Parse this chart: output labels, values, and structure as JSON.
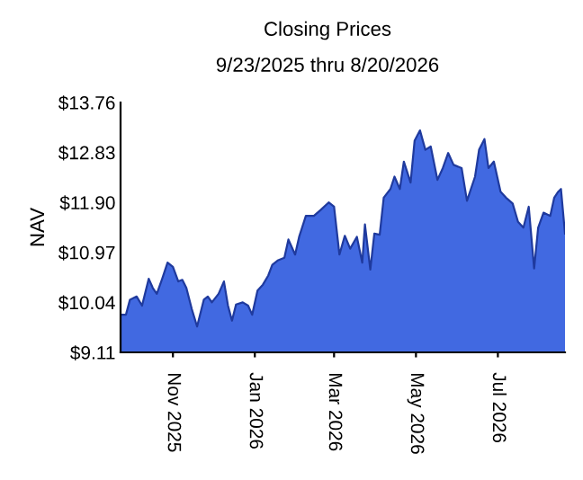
{
  "chart_data": {
    "type": "area",
    "title": "Closing Prices",
    "subtitle": "9/23/2025 thru 8/20/2026",
    "ylabel": "NAV",
    "x": [
      "2025-09-23",
      "2025-09-27",
      "2025-09-30",
      "2025-10-05",
      "2025-10-09",
      "2025-10-14",
      "2025-10-17",
      "2025-10-20",
      "2025-10-24",
      "2025-10-28",
      "2025-11-01",
      "2025-11-05",
      "2025-11-08",
      "2025-11-11",
      "2025-11-15",
      "2025-11-19",
      "2025-11-24",
      "2025-11-27",
      "2025-11-30",
      "2025-12-05",
      "2025-12-09",
      "2025-12-12",
      "2025-12-15",
      "2025-12-18",
      "2025-12-23",
      "2025-12-27",
      "2025-12-30",
      "2026-01-03",
      "2026-01-07",
      "2026-01-11",
      "2026-01-14",
      "2026-01-18",
      "2026-01-23",
      "2026-01-26",
      "2026-01-31",
      "2026-02-03",
      "2026-02-08",
      "2026-02-14",
      "2026-02-19",
      "2026-02-25",
      "2026-03-01",
      "2026-03-05",
      "2026-03-09",
      "2026-03-13",
      "2026-03-18",
      "2026-03-22",
      "2026-03-24",
      "2026-03-28",
      "2026-03-31",
      "2026-04-04",
      "2026-04-07",
      "2026-04-12",
      "2026-04-15",
      "2026-04-19",
      "2026-04-22",
      "2026-04-27",
      "2026-04-30",
      "2026-05-04",
      "2026-05-08",
      "2026-05-12",
      "2026-05-17",
      "2026-05-21",
      "2026-05-25",
      "2026-05-29",
      "2026-06-04",
      "2026-06-08",
      "2026-06-14",
      "2026-06-17",
      "2026-06-21",
      "2026-06-24",
      "2026-06-28",
      "2026-07-03",
      "2026-07-07",
      "2026-07-12",
      "2026-07-16",
      "2026-07-20",
      "2026-07-24",
      "2026-07-28",
      "2026-07-31",
      "2026-08-04",
      "2026-08-09",
      "2026-08-12",
      "2026-08-15",
      "2026-08-17",
      "2026-08-20"
    ],
    "series": [
      {
        "color": "#4169e1",
        "values": [
          9.81,
          9.81,
          10.09,
          10.15,
          9.98,
          10.48,
          10.31,
          10.2,
          10.48,
          10.78,
          10.7,
          10.43,
          10.46,
          10.31,
          9.92,
          9.59,
          10.09,
          10.15,
          10.04,
          10.2,
          10.43,
          9.98,
          9.7,
          10.0,
          10.04,
          9.98,
          9.81,
          10.26,
          10.37,
          10.54,
          10.74,
          10.82,
          10.87,
          11.21,
          10.93,
          11.26,
          11.65,
          11.65,
          11.76,
          11.9,
          11.82,
          10.93,
          11.28,
          11.04,
          11.26,
          10.78,
          11.49,
          10.65,
          11.32,
          11.3,
          11.99,
          12.15,
          12.38,
          12.15,
          12.66,
          12.27,
          13.05,
          13.24,
          12.88,
          12.94,
          12.32,
          12.54,
          12.82,
          12.6,
          12.54,
          11.93,
          12.38,
          12.88,
          13.08,
          12.54,
          12.66,
          12.1,
          11.99,
          11.88,
          11.54,
          11.43,
          11.82,
          10.67,
          11.43,
          11.71,
          11.65,
          11.99,
          12.1,
          12.15,
          11.32
        ]
      }
    ],
    "xlim": [
      "2025-09-23",
      "2026-08-20"
    ],
    "xticks": [
      {
        "value": "2025-11-01",
        "label": "Nov 2025"
      },
      {
        "value": "2026-01-01",
        "label": "Jan 2026"
      },
      {
        "value": "2026-03-01",
        "label": "Mar 2026"
      },
      {
        "value": "2026-05-01",
        "label": "May 2026"
      },
      {
        "value": "2026-07-01",
        "label": "Jul 2026"
      }
    ],
    "ylim": [
      9.11,
      13.76
    ],
    "yticks": [
      {
        "value": 9.11,
        "label": "$9.11"
      },
      {
        "value": 10.04,
        "label": "$10.04"
      },
      {
        "value": 10.97,
        "label": "$10.97"
      },
      {
        "value": 11.9,
        "label": "$11.90"
      },
      {
        "value": 12.83,
        "label": "$12.83"
      },
      {
        "value": 13.76,
        "label": "$13.76"
      }
    ],
    "grid": false,
    "legend": false
  }
}
